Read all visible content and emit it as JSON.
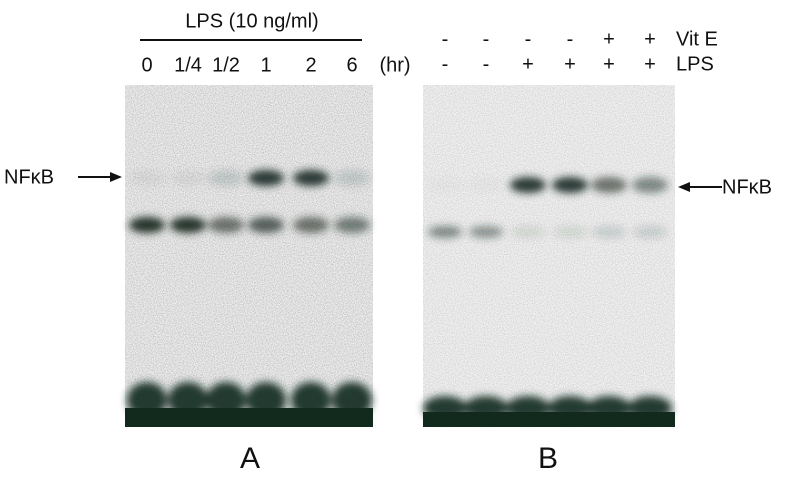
{
  "panel_a": {
    "header": "LPS (10 ng/ml)",
    "lanes": [
      "0",
      "1/4",
      "1/2",
      "1",
      "2",
      "6"
    ],
    "unit": "(hr)",
    "marker": "NFκB",
    "label": "A"
  },
  "panel_b": {
    "rows": [
      {
        "name": "Vit E",
        "lanes": [
          "-",
          "-",
          "-",
          "-",
          "+",
          "+"
        ]
      },
      {
        "name": "LPS",
        "lanes": [
          "-",
          "-",
          "+",
          "+",
          "+",
          "+"
        ]
      }
    ],
    "marker": "NFκB",
    "label": "B"
  }
}
